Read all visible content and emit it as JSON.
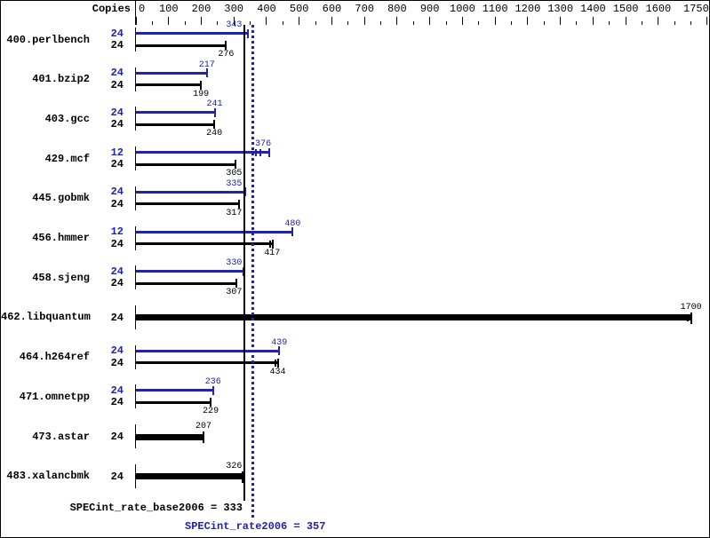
{
  "header": {
    "copies_label": "Copies"
  },
  "chart_data": {
    "type": "bar",
    "title": "",
    "xlabel": "",
    "ylabel": "Copies",
    "axis": {
      "min": 0,
      "max": 1750,
      "major_step": 100,
      "minor_step": 50,
      "tick_labels": [
        "0",
        "100",
        "200",
        "300",
        "400",
        "500",
        "600",
        "700",
        "800",
        "900",
        "1000",
        "1100",
        "1200",
        "1300",
        "1400",
        "1500",
        "1600",
        "1750"
      ]
    },
    "legend": {
      "peak_color_meaning": "peak (SPECint_rate2006)",
      "base_color_meaning": "base (SPECint_rate_base2006)"
    },
    "colors": {
      "peak": "#2222aa",
      "base": "#000000",
      "background": "#ffffff"
    },
    "benchmarks": [
      {
        "name": "400.perlbench",
        "bars": [
          {
            "kind": "peak",
            "copies": 24,
            "value": 343
          },
          {
            "kind": "base",
            "copies": 24,
            "value": 276
          }
        ]
      },
      {
        "name": "401.bzip2",
        "bars": [
          {
            "kind": "peak",
            "copies": 24,
            "value": 217
          },
          {
            "kind": "base",
            "copies": 24,
            "value": 199
          }
        ]
      },
      {
        "name": "403.gcc",
        "bars": [
          {
            "kind": "peak",
            "copies": 24,
            "value": 241
          },
          {
            "kind": "base",
            "copies": 24,
            "value": 240
          }
        ]
      },
      {
        "name": "429.mcf",
        "bars": [
          {
            "kind": "peak",
            "copies": 12,
            "value": 376,
            "marks": [
              367,
              381
            ],
            "end": 408
          },
          {
            "kind": "base",
            "copies": 24,
            "value": 305
          }
        ]
      },
      {
        "name": "445.gobmk",
        "bars": [
          {
            "kind": "peak",
            "copies": 24,
            "value": 335
          },
          {
            "kind": "base",
            "copies": 24,
            "value": 317
          }
        ]
      },
      {
        "name": "456.hmmer",
        "bars": [
          {
            "kind": "peak",
            "copies": 12,
            "value": 480
          },
          {
            "kind": "base",
            "copies": 24,
            "value": 417,
            "marks": [
              412
            ],
            "end": 419
          }
        ]
      },
      {
        "name": "458.sjeng",
        "bars": [
          {
            "kind": "peak",
            "copies": 24,
            "value": 330
          },
          {
            "kind": "base",
            "copies": 24,
            "value": 307
          }
        ]
      },
      {
        "name": "462.libquantum",
        "bars": [
          {
            "kind": "single",
            "copies": 24,
            "value": 1700,
            "marks": [
              1689
            ],
            "end": 1700
          }
        ]
      },
      {
        "name": "464.h264ref",
        "bars": [
          {
            "kind": "peak",
            "copies": 24,
            "value": 439
          },
          {
            "kind": "base",
            "copies": 24,
            "value": 434,
            "marks": [
              427
            ],
            "end": 436
          }
        ]
      },
      {
        "name": "471.omnetpp",
        "bars": [
          {
            "kind": "peak",
            "copies": 24,
            "value": 236
          },
          {
            "kind": "base",
            "copies": 24,
            "value": 229
          }
        ]
      },
      {
        "name": "473.astar",
        "bars": [
          {
            "kind": "single",
            "copies": 24,
            "value": 207
          }
        ]
      },
      {
        "name": "483.xalancbmk",
        "bars": [
          {
            "kind": "single",
            "copies": 24,
            "value": 326
          }
        ]
      }
    ],
    "summary": {
      "base": {
        "label": "SPECint_rate_base2006",
        "value": 333,
        "text": "SPECint_rate_base2006 = 333"
      },
      "peak": {
        "label": "SPECint_rate2006",
        "value": 357,
        "text": "SPECint_rate2006 = 357"
      }
    }
  }
}
